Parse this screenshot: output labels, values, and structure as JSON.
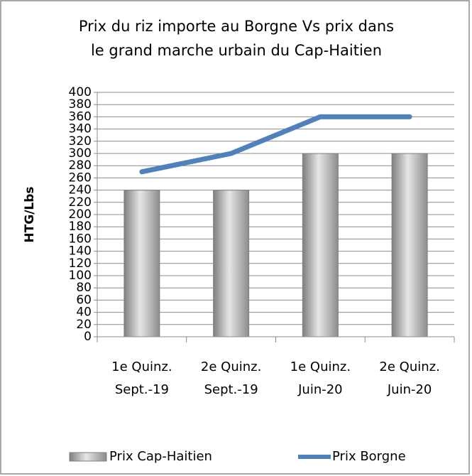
{
  "chart_data": {
    "type": "bar",
    "title": [
      "Prix du riz importe au Borgne Vs prix dans",
      "le grand marche urbain du Cap-Haitien"
    ],
    "y_label": "HTG/Lbs",
    "categories": [
      [
        "1e Quinz.",
        "Sept.-19"
      ],
      [
        "2e Quinz.",
        "Sept.-19"
      ],
      [
        "1e Quinz.",
        "Juin-20"
      ],
      [
        "2e Quinz.",
        "Juin-20"
      ]
    ],
    "series": [
      {
        "name": "Prix Cap-Haitien",
        "type": "bar",
        "color": "#a6a6a6",
        "values": [
          240,
          240,
          300,
          300
        ]
      },
      {
        "name": "Prix Borgne",
        "type": "line",
        "color": "#4f81bd",
        "values": [
          270,
          300,
          360,
          360
        ]
      }
    ],
    "ylim": [
      0,
      400
    ],
    "yticks": [
      0,
      20,
      40,
      60,
      80,
      100,
      120,
      140,
      160,
      180,
      200,
      220,
      240,
      260,
      280,
      300,
      320,
      340,
      360,
      380,
      400
    ],
    "grid": true,
    "legend": "bottom"
  }
}
